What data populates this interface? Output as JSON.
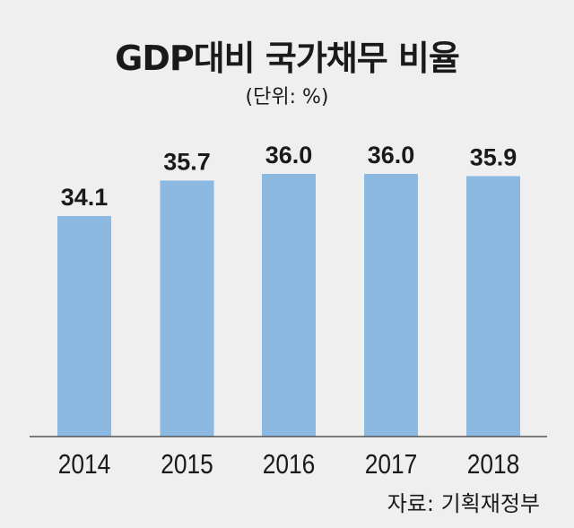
{
  "chart_data": {
    "type": "bar",
    "title": "GDP대비 국가채무 비율",
    "subtitle": "(단위: %)",
    "categories": [
      "2014",
      "2015",
      "2016",
      "2017",
      "2018"
    ],
    "values": [
      34.1,
      35.7,
      36.0,
      36.0,
      35.9
    ],
    "value_labels": [
      "34.1",
      "35.7",
      "36.0",
      "36.0",
      "35.9"
    ],
    "xlabel": "",
    "ylabel": "%",
    "ylim": [
      24.15,
      36.0
    ],
    "grid": false,
    "bar_color": "#8bb9e1",
    "source": "자료: 기획재정부"
  }
}
